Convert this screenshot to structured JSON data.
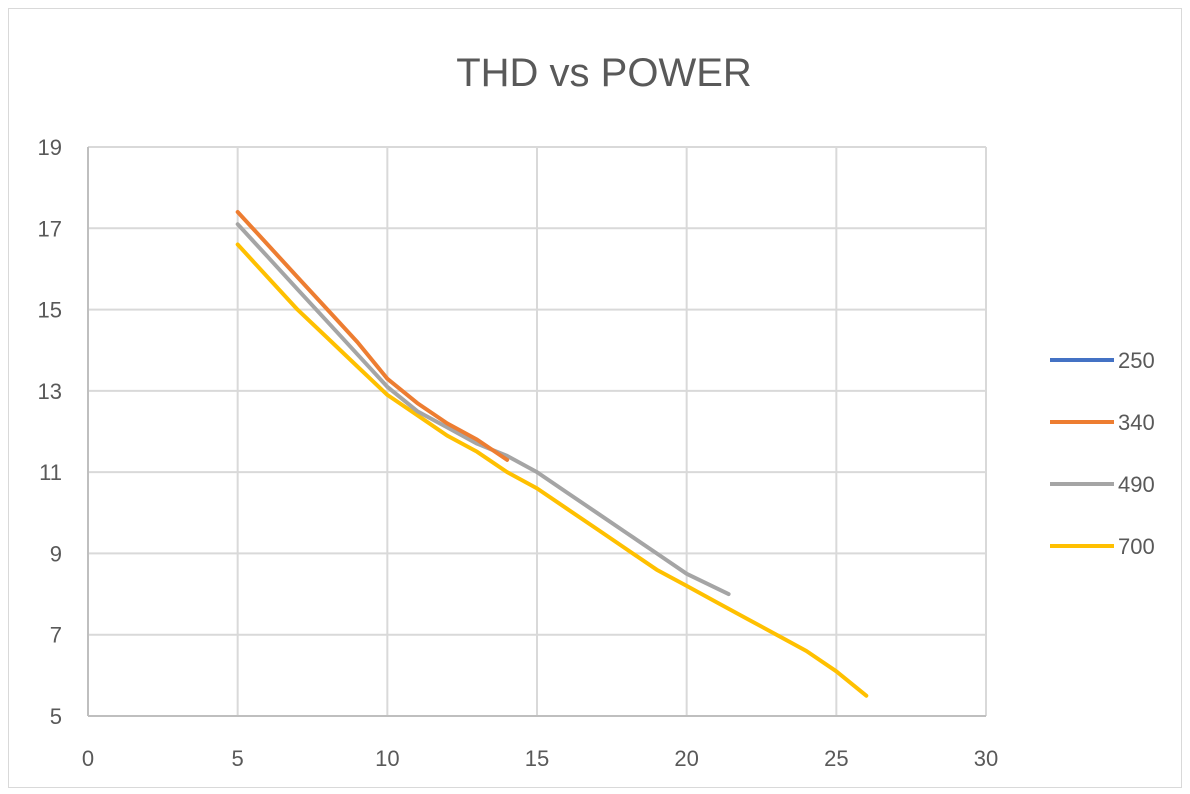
{
  "chart_data": {
    "type": "line",
    "title": "THD vs POWER",
    "xlabel": "",
    "ylabel": "",
    "xlim": [
      0,
      30
    ],
    "ylim": [
      5,
      19
    ],
    "x_ticks": [
      0,
      5,
      10,
      15,
      20,
      25,
      30
    ],
    "y_ticks": [
      5,
      7,
      9,
      11,
      13,
      15,
      17,
      19
    ],
    "grid": true,
    "legend_position": "right",
    "series": [
      {
        "name": "250",
        "color": "#4472C4",
        "points": []
      },
      {
        "name": "340",
        "color": "#ED7D31",
        "points": [
          [
            5,
            17.4
          ],
          [
            6,
            16.6
          ],
          [
            7,
            15.8
          ],
          [
            8,
            15.0
          ],
          [
            9,
            14.2
          ],
          [
            10,
            13.3
          ],
          [
            11,
            12.7
          ],
          [
            12,
            12.2
          ],
          [
            13,
            11.8
          ],
          [
            14,
            11.3
          ]
        ]
      },
      {
        "name": "490",
        "color": "#A5A5A5",
        "points": [
          [
            5,
            17.1
          ],
          [
            6,
            16.3
          ],
          [
            7,
            15.5
          ],
          [
            8,
            14.7
          ],
          [
            9,
            13.9
          ],
          [
            10,
            13.1
          ],
          [
            11,
            12.5
          ],
          [
            12,
            12.1
          ],
          [
            13,
            11.7
          ],
          [
            14,
            11.4
          ],
          [
            15,
            11.0
          ],
          [
            16,
            10.5
          ],
          [
            17,
            10.0
          ],
          [
            18,
            9.5
          ],
          [
            19,
            9.0
          ],
          [
            20,
            8.5
          ],
          [
            21.4,
            8.0
          ]
        ]
      },
      {
        "name": "700",
        "color": "#FFC000",
        "points": [
          [
            5,
            16.6
          ],
          [
            6,
            15.8
          ],
          [
            7,
            15.0
          ],
          [
            8,
            14.3
          ],
          [
            9,
            13.6
          ],
          [
            10,
            12.9
          ],
          [
            11,
            12.4
          ],
          [
            12,
            11.9
          ],
          [
            13,
            11.5
          ],
          [
            14,
            11.0
          ],
          [
            15,
            10.6
          ],
          [
            16,
            10.1
          ],
          [
            17,
            9.6
          ],
          [
            18,
            9.1
          ],
          [
            19,
            8.6
          ],
          [
            20,
            8.2
          ],
          [
            21,
            7.8
          ],
          [
            22,
            7.4
          ],
          [
            23,
            7.0
          ],
          [
            24,
            6.6
          ],
          [
            25,
            6.1
          ],
          [
            26,
            5.5
          ]
        ]
      }
    ]
  }
}
